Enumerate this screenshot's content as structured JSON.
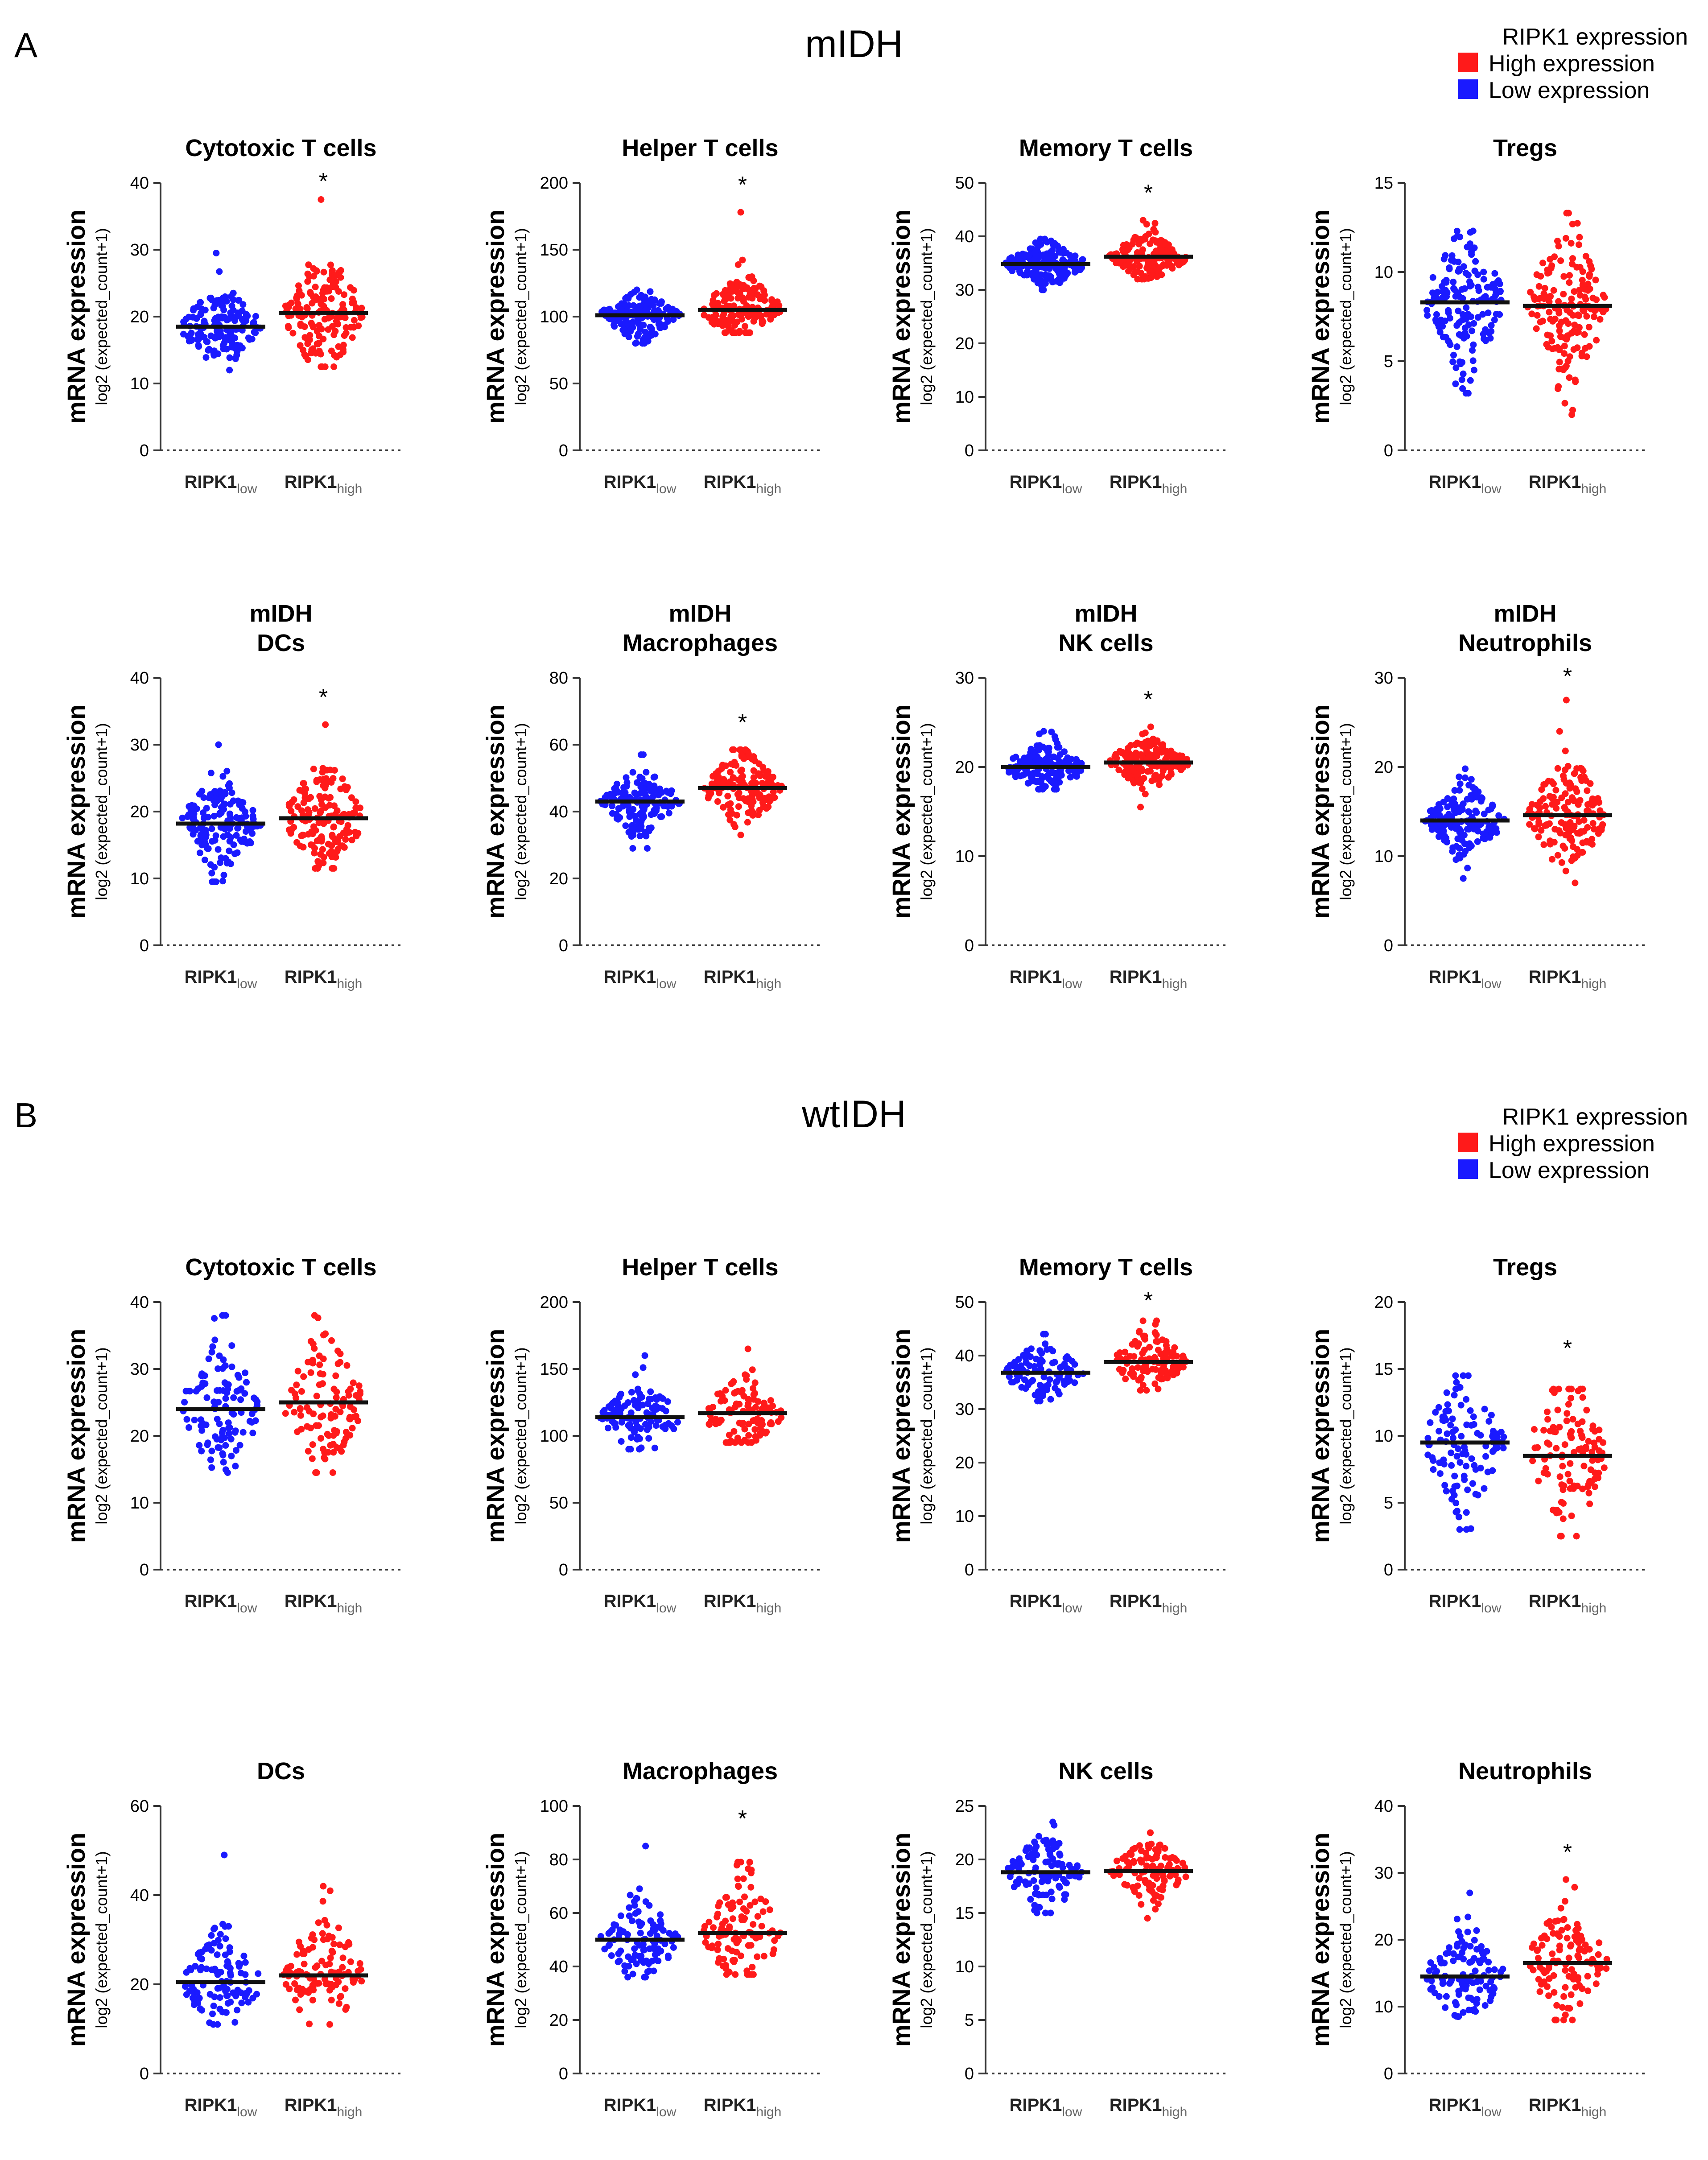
{
  "sections": [
    {
      "letter": "A",
      "title": "mIDH",
      "legend": {
        "title": "RIPK1 expression",
        "items": [
          {
            "label": "High expression",
            "color": "#ff1a1a"
          },
          {
            "label": "Low expression",
            "color": "#1a1aff"
          }
        ]
      }
    },
    {
      "letter": "B",
      "title": "wtIDH",
      "legend": {
        "title": "RIPK1 expression",
        "items": [
          {
            "label": "High expression",
            "color": "#ff1a1a"
          },
          {
            "label": "Low expression",
            "color": "#1a1aff"
          }
        ]
      }
    }
  ],
  "axis_text": {
    "ylabel_main": "mRNA expression",
    "ylabel_sub": "log2 (expected_count+1)",
    "group_low": {
      "main": "RIPK1",
      "sub": "low"
    },
    "group_high": {
      "main": "RIPK1",
      "sub": "high"
    }
  },
  "colors": {
    "low": "#1a1aff",
    "high": "#ff1a1a",
    "median": "#111111"
  },
  "chart_data": [
    {
      "type": "scatter",
      "section": "A",
      "title": [
        "Cytotoxic T cells"
      ],
      "ylim": [
        0,
        40
      ],
      "yticks": [
        0,
        10,
        20,
        30,
        40
      ],
      "groups": [
        {
          "name": "RIPK1 low",
          "median": 18.5,
          "min": 12,
          "max": 29.5,
          "q1": 16.8,
          "q3": 20.5,
          "n": 160
        },
        {
          "name": "RIPK1 high",
          "median": 20.5,
          "min": 12.5,
          "max": 37.5,
          "q1": 17.8,
          "q3": 23.5,
          "n": 160
        }
      ],
      "significance": "*"
    },
    {
      "type": "scatter",
      "section": "A",
      "title": [
        "Helper T cells"
      ],
      "ylim": [
        0,
        200
      ],
      "yticks": [
        0,
        50,
        100,
        150,
        200
      ],
      "groups": [
        {
          "name": "RIPK1 low",
          "median": 101,
          "min": 80,
          "max": 120,
          "q1": 95,
          "q3": 106,
          "n": 160
        },
        {
          "name": "RIPK1 high",
          "median": 105,
          "min": 88,
          "max": 178,
          "q1": 98,
          "q3": 114,
          "n": 160
        }
      ],
      "significance": "*"
    },
    {
      "type": "scatter",
      "section": "A",
      "title": [
        "Memory T cells"
      ],
      "ylim": [
        0,
        50
      ],
      "yticks": [
        0,
        10,
        20,
        30,
        40,
        50
      ],
      "groups": [
        {
          "name": "RIPK1 low",
          "median": 34.8,
          "min": 30,
          "max": 39.5,
          "q1": 33.5,
          "q3": 36.2,
          "n": 160
        },
        {
          "name": "RIPK1 high",
          "median": 36.2,
          "min": 32,
          "max": 43,
          "q1": 35,
          "q3": 37.6,
          "n": 160
        }
      ],
      "significance": "*"
    },
    {
      "type": "scatter",
      "section": "A",
      "title": [
        "Tregs"
      ],
      "ylim": [
        0,
        15
      ],
      "yticks": [
        0,
        5,
        10,
        15
      ],
      "groups": [
        {
          "name": "RIPK1 low",
          "median": 8.3,
          "min": 3.2,
          "max": 12.3,
          "q1": 6.9,
          "q3": 9.4,
          "n": 160
        },
        {
          "name": "RIPK1 high",
          "median": 8.1,
          "min": 2,
          "max": 13.3,
          "q1": 6.6,
          "q3": 9.5,
          "n": 160
        }
      ],
      "significance": ""
    },
    {
      "type": "scatter",
      "section": "A",
      "title": [
        "mIDH",
        "DCs"
      ],
      "ylim": [
        0,
        40
      ],
      "yticks": [
        0,
        10,
        20,
        30,
        40
      ],
      "groups": [
        {
          "name": "RIPK1 low",
          "median": 18.2,
          "min": 9.5,
          "max": 30,
          "q1": 16,
          "q3": 20.5,
          "n": 160
        },
        {
          "name": "RIPK1 high",
          "median": 19,
          "min": 11.5,
          "max": 33,
          "q1": 16.5,
          "q3": 22,
          "n": 160
        }
      ],
      "significance": "*"
    },
    {
      "type": "scatter",
      "section": "A",
      "title": [
        "mIDH",
        "Macrophages"
      ],
      "ylim": [
        0,
        80
      ],
      "yticks": [
        0,
        20,
        40,
        60,
        80
      ],
      "groups": [
        {
          "name": "RIPK1 low",
          "median": 43,
          "min": 29,
          "max": 57,
          "q1": 40,
          "q3": 46,
          "n": 160
        },
        {
          "name": "RIPK1 high",
          "median": 47,
          "min": 33,
          "max": 58.5,
          "q1": 43.5,
          "q3": 50.5,
          "n": 160
        }
      ],
      "significance": "*"
    },
    {
      "type": "scatter",
      "section": "A",
      "title": [
        "mIDH",
        "NK cells"
      ],
      "ylim": [
        0,
        30
      ],
      "yticks": [
        0,
        10,
        20,
        30
      ],
      "groups": [
        {
          "name": "RIPK1 low",
          "median": 20,
          "min": 17.5,
          "max": 24,
          "q1": 19.2,
          "q3": 21,
          "n": 160
        },
        {
          "name": "RIPK1 high",
          "median": 20.5,
          "min": 15.5,
          "max": 24.5,
          "q1": 19.6,
          "q3": 21.4,
          "n": 160
        }
      ],
      "significance": "*"
    },
    {
      "type": "scatter",
      "section": "A",
      "title": [
        "mIDH",
        "Neutrophils"
      ],
      "ylim": [
        0,
        30
      ],
      "yticks": [
        0,
        10,
        20,
        30
      ],
      "groups": [
        {
          "name": "RIPK1 low",
          "median": 14,
          "min": 7.5,
          "max": 19.8,
          "q1": 12.8,
          "q3": 15.3,
          "n": 160
        },
        {
          "name": "RIPK1 high",
          "median": 14.6,
          "min": 7,
          "max": 27.5,
          "q1": 12.8,
          "q3": 16.8,
          "n": 160
        }
      ],
      "significance": "*"
    },
    {
      "type": "scatter",
      "section": "B",
      "title": [
        "Cytotoxic T cells"
      ],
      "ylim": [
        0,
        40
      ],
      "yticks": [
        0,
        10,
        20,
        30,
        40
      ],
      "groups": [
        {
          "name": "RIPK1 low",
          "median": 24,
          "min": 14.5,
          "max": 38,
          "q1": 21,
          "q3": 27.5,
          "n": 110
        },
        {
          "name": "RIPK1 high",
          "median": 25,
          "min": 14.5,
          "max": 38,
          "q1": 22,
          "q3": 28.5,
          "n": 110
        }
      ],
      "significance": ""
    },
    {
      "type": "scatter",
      "section": "B",
      "title": [
        "Helper T cells"
      ],
      "ylim": [
        0,
        200
      ],
      "yticks": [
        0,
        50,
        100,
        150,
        200
      ],
      "groups": [
        {
          "name": "RIPK1 low",
          "median": 114,
          "min": 90,
          "max": 160,
          "q1": 105,
          "q3": 123,
          "n": 110
        },
        {
          "name": "RIPK1 high",
          "median": 117,
          "min": 95,
          "max": 165,
          "q1": 108,
          "q3": 127,
          "n": 110
        }
      ],
      "significance": ""
    },
    {
      "type": "scatter",
      "section": "B",
      "title": [
        "Memory T cells"
      ],
      "ylim": [
        0,
        50
      ],
      "yticks": [
        0,
        10,
        20,
        30,
        40,
        50
      ],
      "groups": [
        {
          "name": "RIPK1 low",
          "median": 36.8,
          "min": 31.5,
          "max": 44,
          "q1": 35,
          "q3": 38.8,
          "n": 110
        },
        {
          "name": "RIPK1 high",
          "median": 38.8,
          "min": 33.5,
          "max": 46.5,
          "q1": 37,
          "q3": 40.5,
          "n": 110
        }
      ],
      "significance": "*"
    },
    {
      "type": "scatter",
      "section": "B",
      "title": [
        "Tregs"
      ],
      "ylim": [
        0,
        20
      ],
      "yticks": [
        0,
        5,
        10,
        15,
        20
      ],
      "groups": [
        {
          "name": "RIPK1 low",
          "median": 9.5,
          "min": 3,
          "max": 14.5,
          "q1": 7.5,
          "q3": 11,
          "n": 110
        },
        {
          "name": "RIPK1 high",
          "median": 8.5,
          "min": 2.5,
          "max": 13.5,
          "q1": 6.5,
          "q3": 10.5,
          "n": 110
        }
      ],
      "significance": "*"
    },
    {
      "type": "scatter",
      "section": "B",
      "title": [
        "DCs"
      ],
      "ylim": [
        0,
        60
      ],
      "yticks": [
        0,
        20,
        40,
        60
      ],
      "groups": [
        {
          "name": "RIPK1 low",
          "median": 20.5,
          "min": 11,
          "max": 49,
          "q1": 17.5,
          "q3": 24.5,
          "n": 110
        },
        {
          "name": "RIPK1 high",
          "median": 22,
          "min": 11,
          "max": 42,
          "q1": 18,
          "q3": 27,
          "n": 110
        }
      ],
      "significance": ""
    },
    {
      "type": "scatter",
      "section": "B",
      "title": [
        "Macrophages"
      ],
      "ylim": [
        0,
        100
      ],
      "yticks": [
        0,
        20,
        40,
        60,
        80,
        100
      ],
      "groups": [
        {
          "name": "RIPK1 low",
          "median": 50,
          "min": 36,
          "max": 85,
          "q1": 45,
          "q3": 55,
          "n": 110
        },
        {
          "name": "RIPK1 high",
          "median": 52.5,
          "min": 37,
          "max": 79,
          "q1": 47,
          "q3": 60,
          "n": 110
        }
      ],
      "significance": "*"
    },
    {
      "type": "scatter",
      "section": "B",
      "title": [
        "NK cells"
      ],
      "ylim": [
        0,
        25
      ],
      "yticks": [
        0,
        5,
        10,
        15,
        20,
        25
      ],
      "groups": [
        {
          "name": "RIPK1 low",
          "median": 18.8,
          "min": 15,
          "max": 23.5,
          "q1": 17.6,
          "q3": 20,
          "n": 110
        },
        {
          "name": "RIPK1 high",
          "median": 18.9,
          "min": 14.5,
          "max": 22.5,
          "q1": 18,
          "q3": 19.8,
          "n": 110
        }
      ],
      "significance": ""
    },
    {
      "type": "scatter",
      "section": "B",
      "title": [
        "Neutrophils"
      ],
      "ylim": [
        0,
        40
      ],
      "yticks": [
        0,
        10,
        20,
        30,
        40
      ],
      "groups": [
        {
          "name": "RIPK1 low",
          "median": 14.5,
          "min": 8.5,
          "max": 27,
          "q1": 12.5,
          "q3": 17,
          "n": 110
        },
        {
          "name": "RIPK1 high",
          "median": 16.5,
          "min": 8,
          "max": 29,
          "q1": 13.5,
          "q3": 19.5,
          "n": 110
        }
      ],
      "significance": "*"
    }
  ]
}
